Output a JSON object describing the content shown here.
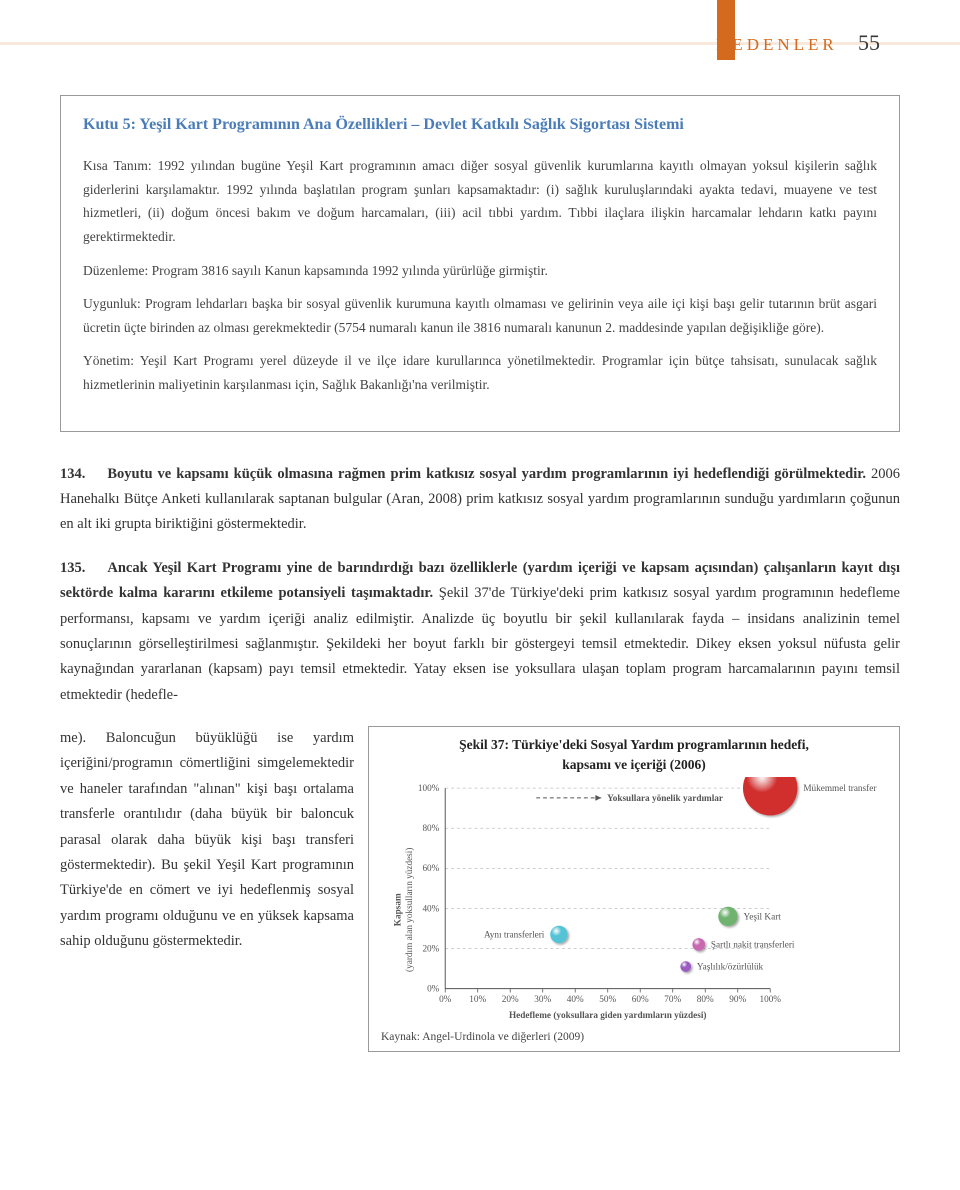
{
  "header": {
    "section": "NEDENLER",
    "page_number": "55",
    "accent_color": "#d46a1e"
  },
  "box": {
    "title": "Kutu 5: Yeşil Kart Programının Ana Özellikleri – Devlet Katkılı Sağlık Sigortası Sistemi",
    "title_color": "#4a7db8",
    "paragraphs": [
      "Kısa Tanım: 1992 yılından bugüne Yeşil Kart programının amacı diğer sosyal güvenlik kurumlarına kayıtlı olmayan yoksul kişilerin sağlık giderlerini karşılamaktır. 1992 yılında başlatılan program şunları kapsamaktadır: (i) sağlık kuruluşlarındaki ayakta tedavi, muayene ve test hizmetleri, (ii) doğum öncesi bakım ve doğum harcamaları, (iii) acil tıbbi yardım. Tıbbi ilaçlara ilişkin harcamalar lehdarın katkı payını gerektirmektedir.",
      "Düzenleme: Program 3816 sayılı Kanun kapsamında 1992 yılında yürürlüğe girmiştir.",
      "Uygunluk: Program lehdarları başka bir sosyal güvenlik kurumuna kayıtlı olmaması ve gelirinin veya aile içi kişi başı gelir tutarının brüt asgari ücretin üçte birinden az olması gerekmektedir (5754 numaralı kanun ile 3816 numaralı kanunun 2. maddesinde yapılan değişikliğe göre).",
      "Yönetim: Yeşil Kart Programı yerel düzeyde il ve ilçe idare kurullarınca yönetilmektedir. Programlar için bütçe tahsisatı, sunulacak sağlık hizmetlerinin maliyetinin karşılanması için, Sağlık Bakanlığı'na verilmiştir."
    ]
  },
  "paragraphs": [
    {
      "num": "134.",
      "lead": "Boyutu ve kapsamı küçük olmasına rağmen prim katkısız sosyal yardım programlarının iyi hedeflendiği görülmektedir.",
      "rest": " 2006 Hanehalkı Bütçe Anketi kullanılarak saptanan bulgular (Aran, 2008) prim katkısız sosyal yardım programlarının sunduğu yardımların çoğunun en alt iki grupta biriktiğini göstermektedir."
    },
    {
      "num": "135.",
      "lead": "Ancak Yeşil Kart Programı yine de barındırdığı bazı özelliklerle (yardım içeriği ve kapsam açısından) çalışanların kayıt dışı sektörde kalma kararını etkileme potansiyeli taşımaktadır.",
      "rest": " Şekil 37'de Türkiye'deki prim katkısız sosyal yardım programının hedefleme performansı, kapsamı ve yardım içeriği analiz edilmiştir. Analizde üç boyutlu bir şekil kullanılarak fayda – insidans analizinin temel sonuçlarının görselleştirilmesi sağlanmıştır. Şekildeki her boyut farklı bir göstergeyi temsil etmektedir. Dikey eksen yoksul nüfusta gelir kaynağından yararlanan (kapsam) payı temsil etmektedir. Yatay eksen ise yoksullara ulaşan toplam program harcamalarının payını temsil etmektedir (hedefle-"
    }
  ],
  "bottom_text": "me). Baloncuğun büyüklüğü ise yardım içeriğini/programın cömertliğini simgelemektedir ve haneler tarafından \"alınan\" kişi başı ortalama transferle orantılıdır (daha büyük bir baloncuk parasal olarak daha büyük kişi başı transferi göstermektedir). Bu şekil Yeşil Kart programının Türkiye'de en cömert ve iyi hedeflenmiş sosyal yardım programı olduğunu ve en yüksek kapsama sahip olduğunu göstermektedir.",
  "figure": {
    "title_line1": "Şekil 37: Türkiye'deki Sosyal Yardım programlarının hedefi,",
    "title_line2": "kapsamı ve içeriği (2006)",
    "source": "Kaynak: Angel-Urdinola ve diğerleri (2009)",
    "axis": {
      "ylabel_line1": "Kapsam",
      "ylabel_line2": "(yardım alan yoksulların yüzdesi)",
      "xlabel": "Hedefleme (yoksullara giden yardımların yüzdesi)",
      "x_ticks": [
        "0%",
        "10%",
        "20%",
        "30%",
        "40%",
        "50%",
        "60%",
        "70%",
        "80%",
        "90%",
        "100%"
      ],
      "y_ticks": [
        "0%",
        "20%",
        "40%",
        "60%",
        "80%",
        "100%"
      ],
      "grid_color": "#bfbfbf",
      "axis_color": "#555555"
    },
    "arrow_label": "Yoksullara yönelik yardımlar",
    "bubbles": [
      {
        "label": "Mükemmel transfer",
        "x": 100,
        "y": 100,
        "r": 28,
        "fill": "#d12f2f",
        "label_side": "right"
      },
      {
        "label": "Yeşil Kart",
        "x": 87,
        "y": 36,
        "r": 10,
        "fill": "#6fb26f",
        "label_side": "right"
      },
      {
        "label": "Aynı transferleri",
        "x": 35,
        "y": 27,
        "r": 9,
        "fill": "#55c3d6",
        "label_side": "left"
      },
      {
        "label": "Şartlı nakit transferleri",
        "x": 78,
        "y": 22,
        "r": 6.5,
        "fill": "#c768b1",
        "label_side": "right"
      },
      {
        "label": "Yaşlılık/özürlülük",
        "x": 74,
        "y": 11,
        "r": 5.5,
        "fill": "#9a5cc1",
        "label_side": "right"
      }
    ]
  }
}
